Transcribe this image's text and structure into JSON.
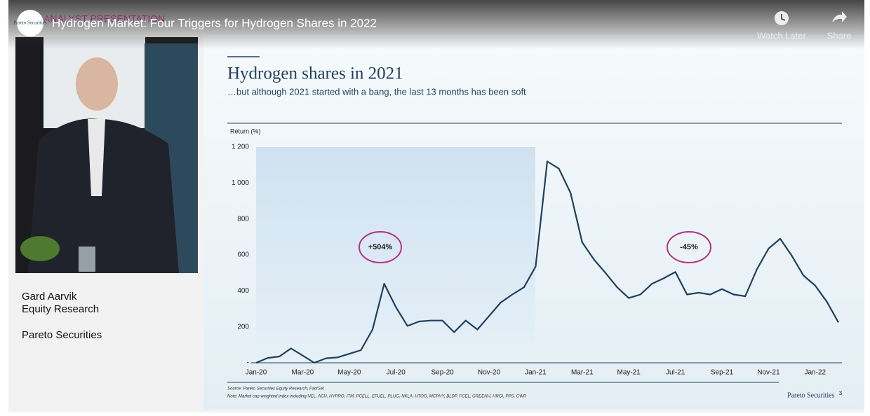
{
  "video": {
    "title": "Hydrogen Market: Four Triggers for Hydrogen Shares in 2022",
    "overlay": "ANALYST PRESENTATION",
    "channel_logo": "Pareto Securities",
    "watch_later": "Watch Later",
    "share": "Share"
  },
  "presenter": {
    "name": "Gard Aarvik",
    "role": "Equity Research",
    "company": "Pareto Securities"
  },
  "slide": {
    "title": "Hydrogen shares in 2021",
    "subtitle": "…but although 2021 started with a bang, the last 13 months has been soft",
    "source": "Source: Pareto Securities Equity Research, FactSet",
    "note": "Note: Market cap weighted index including NEL, ACH, HYPRO, ITM, PCELL, EFUEL, PLUG, NKLA, HTOO, MCPHY, BLDP, FCEL, GREENH, HRGI, PPS, CWR",
    "logo": "Pareto Securities",
    "page": "3"
  },
  "chart_data": {
    "type": "line",
    "y_label": "Return (%)",
    "color": "#1f3f5f",
    "categories": [
      "Jan-20",
      null,
      null,
      null,
      "Mar-20",
      null,
      null,
      null,
      "May-20",
      null,
      null,
      null,
      "Jul-20",
      null,
      null,
      null,
      "Sep-20",
      null,
      null,
      null,
      "Nov-20",
      null,
      null,
      null,
      "Jan-21",
      null,
      null,
      null,
      "Mar-21",
      null,
      null,
      null,
      "May-21",
      null,
      null,
      null,
      "Jul-21",
      null,
      null,
      null,
      "Sep-21",
      null,
      null,
      null,
      "Nov-21",
      null,
      null,
      null,
      "Jan-22",
      null,
      null
    ],
    "values": [
      0,
      27,
      35,
      80,
      40,
      0,
      25,
      30,
      50,
      70,
      185,
      440,
      310,
      205,
      230,
      235,
      235,
      170,
      235,
      185,
      260,
      335,
      380,
      420,
      535,
      1120,
      1080,
      945,
      670,
      575,
      500,
      420,
      360,
      380,
      440,
      470,
      505,
      380,
      390,
      380,
      410,
      380,
      370,
      520,
      635,
      690,
      595,
      485,
      430,
      340,
      225
    ],
    "ylim": [
      0,
      1200
    ],
    "yticks": [
      {
        "value": 0,
        "label": "-"
      },
      200,
      400,
      600,
      800,
      {
        "value": 1000,
        "label": "1 000"
      },
      {
        "value": 1200,
        "label": "1 200"
      }
    ],
    "annotations": [
      "+504%",
      "-45%"
    ]
  }
}
